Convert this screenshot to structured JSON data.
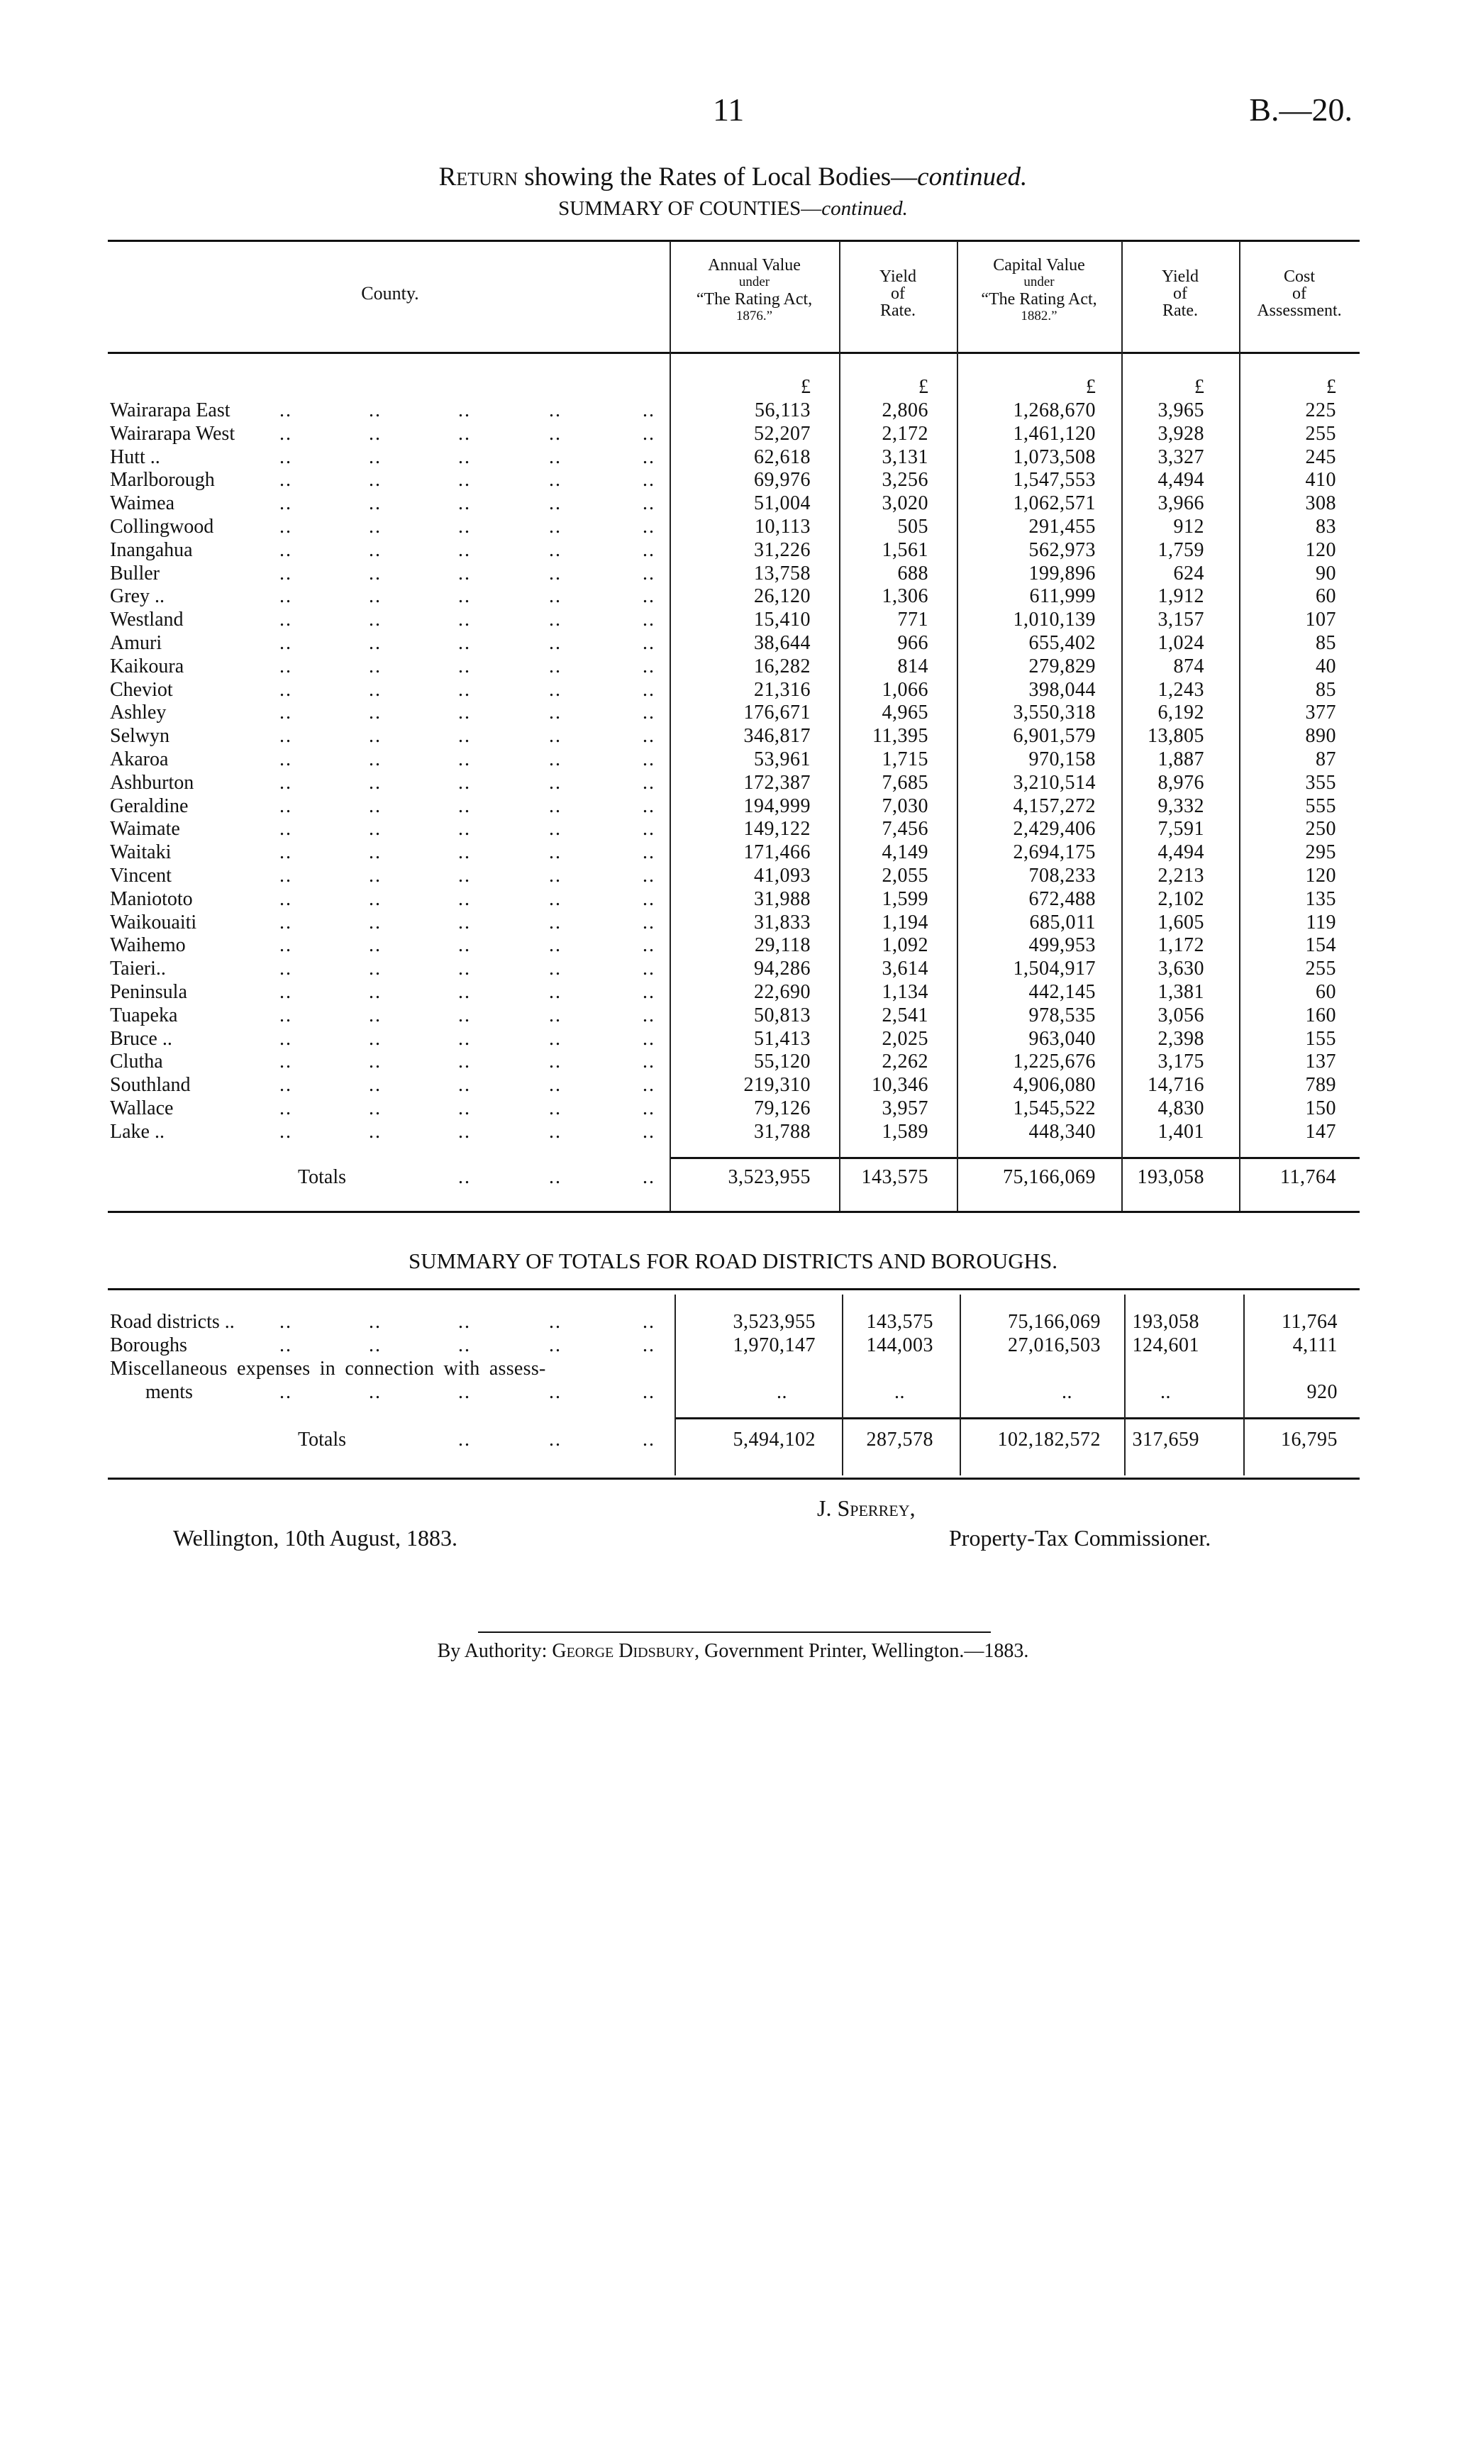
{
  "page_header": {
    "page_number": "11",
    "reference": "B.—20."
  },
  "title": {
    "lead": "Return",
    "rest": " showing the Rates of Local Bodies—",
    "continued": "continued."
  },
  "subtitle": {
    "text": "SUMMARY OF COUNTIES—",
    "continued": "continued."
  },
  "county_table": {
    "county_header": "County.",
    "columns": [
      {
        "lines": [
          "Annual Value",
          "under",
          "“The Rating Act,",
          "1876.”"
        ]
      },
      {
        "lines": [
          "Yield",
          "of",
          "Rate."
        ]
      },
      {
        "lines": [
          "Capital Value",
          "under",
          "“The Rating Act,",
          "1882.”"
        ]
      },
      {
        "lines": [
          "Yield",
          "of",
          "Rate."
        ]
      },
      {
        "lines": [
          "Cost",
          "of",
          "Assessment."
        ]
      }
    ],
    "currency": "£",
    "rows": [
      {
        "name": "Wairarapa East",
        "values": [
          "56,113",
          "2,806",
          "1,268,670",
          "3,965",
          "225"
        ]
      },
      {
        "name": "Wairarapa West",
        "values": [
          "52,207",
          "2,172",
          "1,461,120",
          "3,928",
          "255"
        ]
      },
      {
        "name": "Hutt ..",
        "values": [
          "62,618",
          "3,131",
          "1,073,508",
          "3,327",
          "245"
        ]
      },
      {
        "name": "Marlborough",
        "values": [
          "69,976",
          "3,256",
          "1,547,553",
          "4,494",
          "410"
        ]
      },
      {
        "name": "Waimea",
        "values": [
          "51,004",
          "3,020",
          "1,062,571",
          "3,966",
          "308"
        ]
      },
      {
        "name": "Collingwood",
        "values": [
          "10,113",
          "505",
          "291,455",
          "912",
          "83"
        ]
      },
      {
        "name": "Inangahua",
        "values": [
          "31,226",
          "1,561",
          "562,973",
          "1,759",
          "120"
        ]
      },
      {
        "name": "Buller",
        "values": [
          "13,758",
          "688",
          "199,896",
          "624",
          "90"
        ]
      },
      {
        "name": "Grey ..",
        "values": [
          "26,120",
          "1,306",
          "611,999",
          "1,912",
          "60"
        ]
      },
      {
        "name": "Westland",
        "values": [
          "15,410",
          "771",
          "1,010,139",
          "3,157",
          "107"
        ]
      },
      {
        "name": "Amuri",
        "values": [
          "38,644",
          "966",
          "655,402",
          "1,024",
          "85"
        ]
      },
      {
        "name": "Kaikoura",
        "values": [
          "16,282",
          "814",
          "279,829",
          "874",
          "40"
        ]
      },
      {
        "name": "Cheviot",
        "values": [
          "21,316",
          "1,066",
          "398,044",
          "1,243",
          "85"
        ]
      },
      {
        "name": "Ashley",
        "values": [
          "176,671",
          "4,965",
          "3,550,318",
          "6,192",
          "377"
        ]
      },
      {
        "name": "Selwyn",
        "values": [
          "346,817",
          "11,395",
          "6,901,579",
          "13,805",
          "890"
        ]
      },
      {
        "name": "Akaroa",
        "values": [
          "53,961",
          "1,715",
          "970,158",
          "1,887",
          "87"
        ]
      },
      {
        "name": "Ashburton",
        "values": [
          "172,387",
          "7,685",
          "3,210,514",
          "8,976",
          "355"
        ]
      },
      {
        "name": "Geraldine",
        "values": [
          "194,999",
          "7,030",
          "4,157,272",
          "9,332",
          "555"
        ]
      },
      {
        "name": "Waimate",
        "values": [
          "149,122",
          "7,456",
          "2,429,406",
          "7,591",
          "250"
        ]
      },
      {
        "name": "Waitaki",
        "values": [
          "171,466",
          "4,149",
          "2,694,175",
          "4,494",
          "295"
        ]
      },
      {
        "name": "Vincent",
        "values": [
          "41,093",
          "2,055",
          "708,233",
          "2,213",
          "120"
        ]
      },
      {
        "name": "Maniototo",
        "values": [
          "31,988",
          "1,599",
          "672,488",
          "2,102",
          "135"
        ]
      },
      {
        "name": "Waikouaiti",
        "values": [
          "31,833",
          "1,194",
          "685,011",
          "1,605",
          "119"
        ]
      },
      {
        "name": "Waihemo",
        "values": [
          "29,118",
          "1,092",
          "499,953",
          "1,172",
          "154"
        ]
      },
      {
        "name": "Taieri..",
        "values": [
          "94,286",
          "3,614",
          "1,504,917",
          "3,630",
          "255"
        ]
      },
      {
        "name": "Peninsula",
        "values": [
          "22,690",
          "1,134",
          "442,145",
          "1,381",
          "60"
        ]
      },
      {
        "name": "Tuapeka",
        "values": [
          "50,813",
          "2,541",
          "978,535",
          "3,056",
          "160"
        ]
      },
      {
        "name": "Bruce ..",
        "values": [
          "51,413",
          "2,025",
          "963,040",
          "2,398",
          "155"
        ]
      },
      {
        "name": "Clutha",
        "values": [
          "55,120",
          "2,262",
          "1,225,676",
          "3,175",
          "137"
        ]
      },
      {
        "name": "Southland",
        "values": [
          "219,310",
          "10,346",
          "4,906,080",
          "14,716",
          "789"
        ]
      },
      {
        "name": "Wallace",
        "values": [
          "79,126",
          "3,957",
          "1,545,522",
          "4,830",
          "150"
        ]
      },
      {
        "name": "Lake ..",
        "values": [
          "31,788",
          "1,589",
          "448,340",
          "1,401",
          "147"
        ]
      }
    ],
    "totals": {
      "label": "Totals",
      "values": [
        "3,523,955",
        "143,575",
        "75,166,069",
        "193,058",
        "11,764"
      ]
    }
  },
  "totals_summary": {
    "title": "SUMMARY OF TOTALS FOR ROAD DISTRICTS AND BOROUGHS.",
    "rows": [
      {
        "label": "Road districts ..",
        "values": [
          "3,523,955",
          "143,575",
          "75,166,069",
          "193,058",
          "11,764"
        ]
      },
      {
        "label": "Boroughs",
        "values": [
          "1,970,147",
          "144,003",
          "27,016,503",
          "124,601",
          "4,111"
        ]
      }
    ],
    "misc": {
      "label_line1": "Miscellaneous expenses in connection with assess-",
      "label_line2": "ments",
      "values": [
        "..",
        "..",
        "..",
        "..",
        "920"
      ]
    },
    "totals": {
      "label": "Totals",
      "values": [
        "5,494,102",
        "287,578",
        "102,182,572",
        "317,659",
        "16,795"
      ]
    }
  },
  "signature": {
    "name": "J. Sperrey,",
    "position": "Property-Tax Commissioner.",
    "place_date": "Wellington, 10th August, 1883."
  },
  "imprint": {
    "lead": "By Authority: ",
    "printer": "George Didsbury",
    "rest": ", Government Printer, Wellington.—1883."
  }
}
